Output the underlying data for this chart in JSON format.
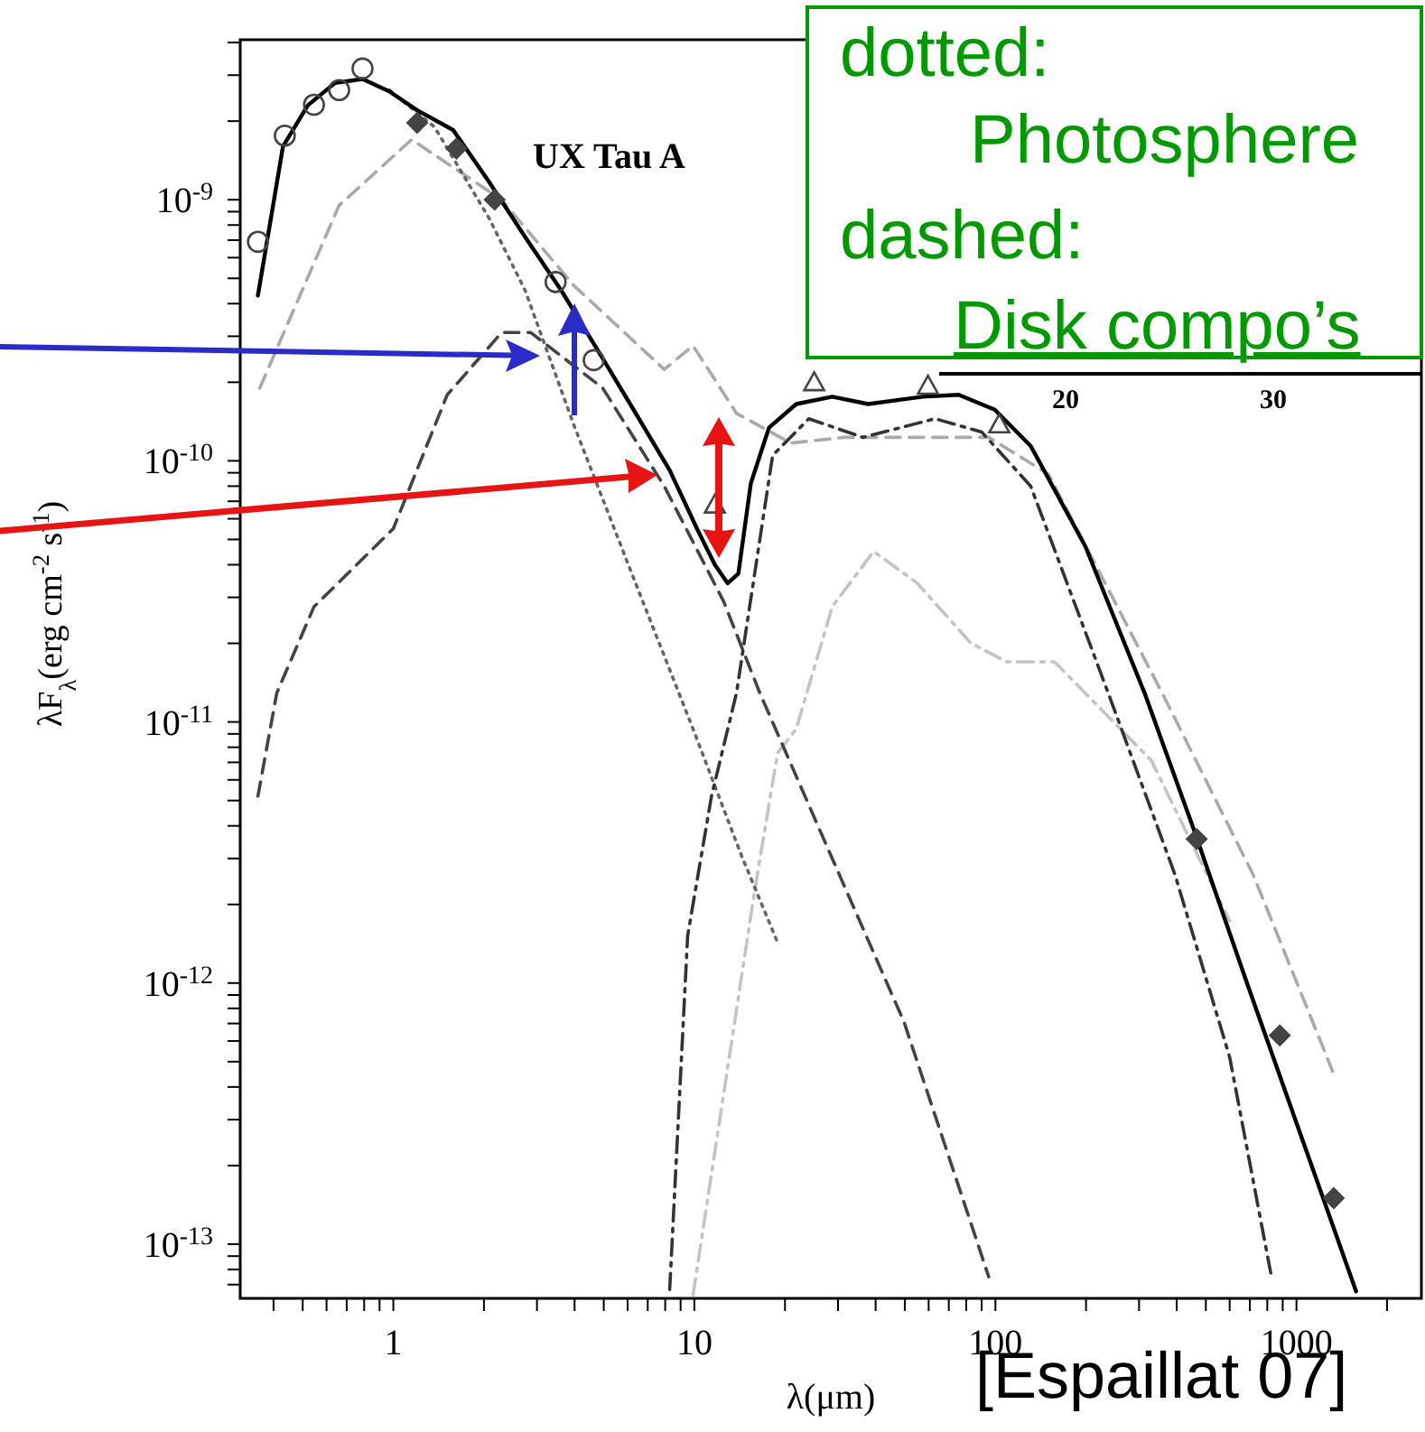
{
  "chart_data": {
    "type": "line",
    "title": "UX Tau A",
    "xlabel": "λ(μm)",
    "ylabel": "λF$_{λ}$(erg cm$^{-2}$ s$^{-1}$)",
    "log": "xy",
    "xlim": [
      0.31,
      2600
    ],
    "ylim": [
      6.2e-14,
      4.1e-09
    ],
    "xticks": [
      {
        "value": 0.4,
        "label": null
      },
      {
        "value": 0.5,
        "label": null
      },
      {
        "value": 0.6,
        "label": null
      },
      {
        "value": 0.7,
        "label": null
      },
      {
        "value": 0.8,
        "label": null
      },
      {
        "value": 0.9,
        "label": null
      },
      1,
      {
        "value": 2,
        "label": null
      },
      {
        "value": 3,
        "label": null
      },
      {
        "value": 4,
        "label": null
      },
      {
        "value": 5,
        "label": null
      },
      {
        "value": 6,
        "label": null
      },
      {
        "value": 7,
        "label": null
      },
      {
        "value": 8,
        "label": null
      },
      {
        "value": 9,
        "label": null
      },
      10,
      {
        "value": 20,
        "label": null
      },
      {
        "value": 30,
        "label": null
      },
      {
        "value": 40,
        "label": null
      },
      {
        "value": 50,
        "label": null
      },
      {
        "value": 60,
        "label": null
      },
      {
        "value": 70,
        "label": null
      },
      {
        "value": 80,
        "label": null
      },
      {
        "value": 90,
        "label": null
      },
      100,
      {
        "value": 200,
        "label": null
      },
      {
        "value": 300,
        "label": null
      },
      {
        "value": 400,
        "label": null
      },
      {
        "value": 500,
        "label": null
      },
      {
        "value": 600,
        "label": null
      },
      {
        "value": 700,
        "label": null
      },
      {
        "value": 800,
        "label": null
      },
      {
        "value": 900,
        "label": null
      },
      1000,
      {
        "value": 2000,
        "label": null
      }
    ],
    "yticks": [
      {
        "value": 7e-14,
        "label": null
      },
      {
        "value": 8e-14,
        "label": null
      },
      {
        "value": 9e-14,
        "label": null
      },
      {
        "value": 1e-13,
        "label": "10$^{-13}$"
      },
      {
        "value": 2e-13,
        "label": null
      },
      {
        "value": 3e-13,
        "label": null
      },
      {
        "value": 4e-13,
        "label": null
      },
      {
        "value": 5e-13,
        "label": null
      },
      {
        "value": 6e-13,
        "label": null
      },
      {
        "value": 7e-13,
        "label": null
      },
      {
        "value": 8e-13,
        "label": null
      },
      {
        "value": 9e-13,
        "label": null
      },
      {
        "value": 1e-12,
        "label": "10$^{-12}$"
      },
      {
        "value": 2e-12,
        "label": null
      },
      {
        "value": 3e-12,
        "label": null
      },
      {
        "value": 4e-12,
        "label": null
      },
      {
        "value": 5e-12,
        "label": null
      },
      {
        "value": 6e-12,
        "label": null
      },
      {
        "value": 7e-12,
        "label": null
      },
      {
        "value": 8e-12,
        "label": null
      },
      {
        "value": 9e-12,
        "label": null
      },
      {
        "value": 1e-11,
        "label": "10$^{-11}$"
      },
      {
        "value": 2e-11,
        "label": null
      },
      {
        "value": 3e-11,
        "label": null
      },
      {
        "value": 4e-11,
        "label": null
      },
      {
        "value": 5e-11,
        "label": null
      },
      {
        "value": 6e-11,
        "label": null
      },
      {
        "value": 7e-11,
        "label": null
      },
      {
        "value": 8e-11,
        "label": null
      },
      {
        "value": 9e-11,
        "label": null
      },
      {
        "value": 1e-10,
        "label": "10$^{-10}$"
      },
      {
        "value": 2e-10,
        "label": null
      },
      {
        "value": 3e-10,
        "label": null
      },
      {
        "value": 4e-10,
        "label": null
      },
      {
        "value": 5e-10,
        "label": null
      },
      {
        "value": 6e-10,
        "label": null
      },
      {
        "value": 7e-10,
        "label": null
      },
      {
        "value": 8e-10,
        "label": null
      },
      {
        "value": 9e-10,
        "label": null
      },
      {
        "value": 1e-09,
        "label": "10$^{-9}$"
      },
      {
        "value": 2e-09,
        "label": null
      },
      {
        "value": 3e-09,
        "label": null
      },
      {
        "value": 4e-09,
        "label": null
      }
    ],
    "series": [
      {
        "type": "line",
        "line_style": "dashed",
        "color": "#aaaaaa",
        "x": [
          0.36,
          0.66,
          1.15,
          2.29,
          3.97,
          7.94,
          9.9,
          13.8,
          20.9,
          31.5,
          63,
          95,
          150,
          358,
          718,
          1318
        ],
        "values": [
          1.9e-10,
          9.5e-10,
          1.7e-09,
          1e-09,
          4.7e-10,
          2.24e-10,
          2.76e-10,
          1.52e-10,
          1.17e-10,
          1.23e-10,
          1.23e-10,
          1.23e-10,
          8.9e-11,
          1.29e-11,
          2.6e-12,
          4.6e-13
        ]
      },
      {
        "type": "line",
        "line_style": "dashdot",
        "color": "#c4c4c4",
        "x": [
          9.9,
          15.8,
          18.9,
          21.8,
          28.7,
          39.4,
          55,
          83,
          109,
          157,
          207,
          330,
          600
        ],
        "values": [
          6.4e-14,
          2.2e-12,
          7.6e-12,
          9.4e-12,
          2.76e-11,
          4.5e-11,
          3.4e-11,
          2e-11,
          1.7e-11,
          1.7e-11,
          1.23e-11,
          7.1e-12,
          1.73e-12
        ]
      },
      {
        "type": "line",
        "line_style": "dotted",
        "color": "#666666",
        "x": [
          0.97,
          1.37,
          2.08,
          2.74,
          3.97,
          6.28,
          9.9,
          14.4,
          18.9
        ],
        "values": [
          2.63e-09,
          1.9e-09,
          8.5e-10,
          4.5e-10,
          1.38e-10,
          3.56e-11,
          9.4e-12,
          3.04e-12,
          1.43e-12
        ]
      },
      {
        "type": "line",
        "line_style": "dashed",
        "color": "#444444",
        "x": [
          0.355,
          0.41,
          0.545,
          1.0,
          1.51,
          2.29,
          2.86,
          4.96,
          7.94,
          12.5,
          16.5,
          28.7,
          49.7,
          95
        ],
        "values": [
          5.2e-12,
          1.29e-11,
          2.76e-11,
          5.5e-11,
          1.79e-10,
          3.1e-10,
          3.1e-10,
          1.9e-10,
          8e-11,
          2.9e-11,
          1.29e-11,
          3e-12,
          7.1e-13,
          7.5e-14
        ]
      },
      {
        "type": "line",
        "line_style": "dashdot",
        "color": "#333333",
        "x": [
          8.28,
          9.5,
          11.4,
          13.8,
          18.2,
          24,
          36.3,
          63,
          90,
          131,
          237,
          395,
          600,
          826
        ],
        "values": [
          6.7e-14,
          1.52e-12,
          5.2e-12,
          1.29e-11,
          1.05e-10,
          1.45e-10,
          1.23e-10,
          1.45e-10,
          1.29e-10,
          8e-11,
          1.29e-11,
          2.6e-12,
          5.2e-13,
          7.5e-14
        ]
      },
      {
        "type": "line",
        "line_style": "solid",
        "color": "#000000",
        "x": [
          0.355,
          0.43,
          0.52,
          0.64,
          0.79,
          0.97,
          1.2,
          1.58,
          2.08,
          2.74,
          3.61,
          4.76,
          6.28,
          8.28,
          10.2,
          11.7,
          12.9,
          14.0,
          15.4,
          17.7,
          21.8,
          28.7,
          37.8,
          57.3,
          75.5,
          99.5,
          131,
          199,
          313,
          455,
          689,
          1042,
          1578
        ],
        "values": [
          4.3e-10,
          1.6e-09,
          2.3e-09,
          2.8e-09,
          2.9e-09,
          2.6e-09,
          2.2e-09,
          1.85e-09,
          1.17e-09,
          7.2e-10,
          4.5e-10,
          2.67e-10,
          1.57e-10,
          9.2e-11,
          5.5e-11,
          4e-11,
          3.4e-11,
          3.7e-11,
          8.2e-11,
          1.34e-10,
          1.65e-10,
          1.76e-10,
          1.65e-10,
          1.76e-10,
          1.79e-10,
          1.57e-10,
          1.14e-10,
          4.7e-11,
          1.29e-11,
          3.9e-12,
          9.8e-13,
          2.55e-13,
          6.6e-14
        ]
      },
      {
        "type": "scatter",
        "marker": "circle",
        "color": "#444444",
        "x": [
          0.355,
          0.436,
          0.545,
          0.661,
          0.79,
          3.46,
          4.63
        ],
        "values": [
          6.9e-10,
          1.76e-09,
          2.31e-09,
          2.63e-09,
          3.18e-09,
          4.84e-10,
          2.43e-10
        ]
      },
      {
        "type": "scatter",
        "marker": "diamond",
        "color": "#444444",
        "x": [
          1.2,
          1.62,
          2.17,
          466,
          880,
          1330
        ],
        "values": [
          1.97e-09,
          1.57e-09,
          1e-09,
          3.56e-12,
          6.3e-13,
          1.5e-13
        ]
      },
      {
        "type": "scatter",
        "marker": "triangle",
        "color": "#444444",
        "x": [
          11.7,
          25,
          59.7,
          103
        ],
        "values": [
          6.8e-11,
          2e-10,
          1.94e-10,
          1.38e-10
        ]
      }
    ],
    "annotations": [
      "dotted:",
      "Photosphere",
      "dashed:",
      "Disk compo’s",
      "20",
      "30",
      "[Espaillat 07]"
    ]
  }
}
